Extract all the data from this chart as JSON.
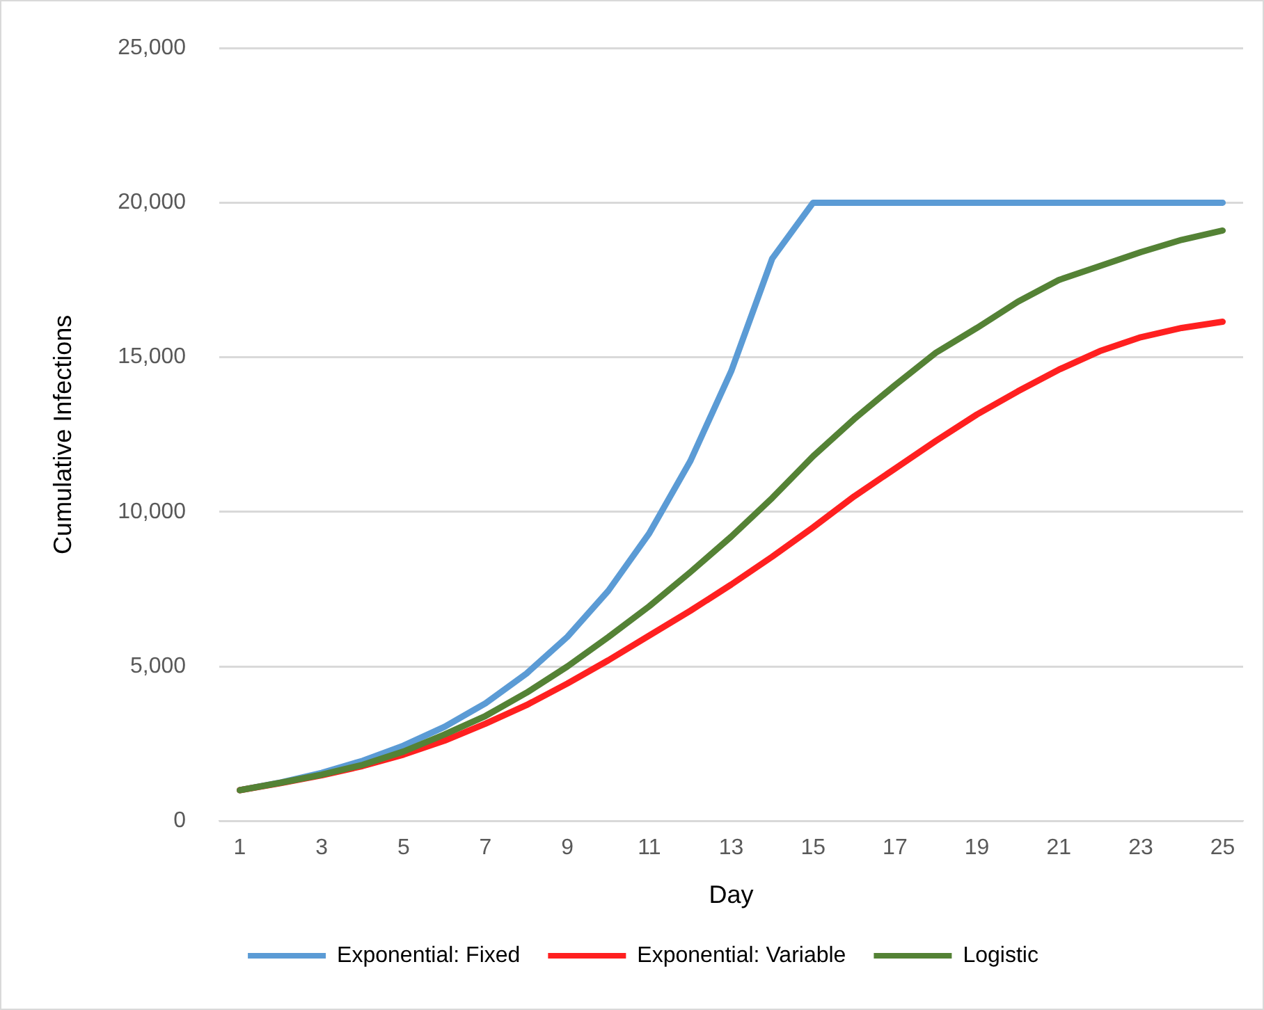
{
  "chart_data": {
    "type": "line",
    "xlabel": "Day",
    "ylabel": "Cumulative Infections",
    "x": [
      1,
      2,
      3,
      4,
      5,
      6,
      7,
      8,
      9,
      10,
      11,
      12,
      13,
      14,
      15,
      16,
      17,
      18,
      19,
      20,
      21,
      22,
      23,
      24,
      25
    ],
    "xlim": [
      0.5,
      25.5
    ],
    "xticks": [
      1,
      3,
      5,
      7,
      9,
      11,
      13,
      15,
      17,
      19,
      21,
      23,
      25
    ],
    "series": [
      {
        "name": "Exponential: Fixed",
        "color": "#5b9bd5",
        "values": [
          1000,
          1250,
          1560,
          1950,
          2440,
          3050,
          3810,
          4770,
          5960,
          7450,
          9310,
          11640,
          14550,
          18190,
          20000,
          20000,
          20000,
          20000,
          20000,
          20000,
          20000,
          20000,
          20000,
          20000,
          20000
        ]
      },
      {
        "name": "Exponential: Variable",
        "color": "#ff2020",
        "values": [
          1000,
          1230,
          1480,
          1780,
          2150,
          2600,
          3150,
          3750,
          4450,
          5200,
          6000,
          6800,
          7650,
          8550,
          9500,
          10500,
          11400,
          12300,
          13150,
          13900,
          14600,
          15200,
          15650,
          15950,
          16150
        ]
      },
      {
        "name": "Logistic",
        "color": "#548235",
        "values": [
          1000,
          1240,
          1500,
          1820,
          2250,
          2800,
          3400,
          4150,
          5000,
          5950,
          6950,
          8050,
          9200,
          10450,
          11800,
          13000,
          14100,
          15150,
          15950,
          16800,
          17500,
          17950,
          18400,
          18800,
          19100
        ]
      }
    ],
    "ylim": [
      0,
      25000
    ],
    "yticks": [
      0,
      {
        "value": 5000,
        "label": "5,000"
      },
      {
        "value": 10000,
        "label": "10,000"
      },
      {
        "value": 15000,
        "label": "15,000"
      },
      {
        "value": 20000,
        "label": "20,000"
      },
      {
        "value": 25000,
        "label": "25,000"
      }
    ],
    "grid": "y",
    "legend": "bottom",
    "marker": "none",
    "line_style": "solid"
  }
}
